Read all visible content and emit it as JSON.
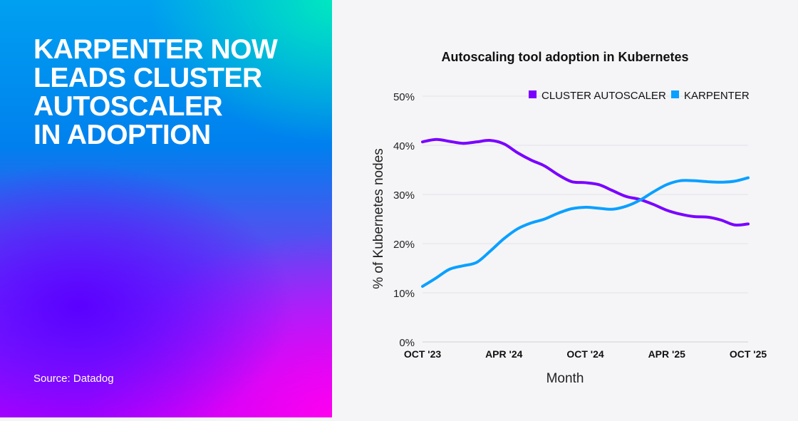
{
  "headline": [
    "KARPENTER NOW",
    "LEADS CLUSTER",
    "AUTOSCALER",
    "IN ADOPTION"
  ],
  "source": "Source: Datadog",
  "chart_data": {
    "type": "line",
    "title": "Autoscaling tool adoption in Kubernetes",
    "xlabel": "Month",
    "ylabel": "% of Kubernetes nodes",
    "ylim": [
      0,
      50
    ],
    "yticks": [
      "0%",
      "10%",
      "20%",
      "30%",
      "40%",
      "50%"
    ],
    "ytick_values": [
      0,
      10,
      20,
      30,
      40,
      50
    ],
    "xticks": [
      "OCT '23",
      "APR '24",
      "OCT '24",
      "APR '25",
      "OCT '25"
    ],
    "xtick_index": [
      0,
      6,
      12,
      18,
      24
    ],
    "x": [
      "2023-10",
      "2023-11",
      "2023-12",
      "2024-01",
      "2024-02",
      "2024-03",
      "2024-04",
      "2024-05",
      "2024-06",
      "2024-07",
      "2024-08",
      "2024-09",
      "2024-10",
      "2024-11",
      "2024-12",
      "2025-01",
      "2025-02",
      "2025-03",
      "2025-04",
      "2025-05",
      "2025-06",
      "2025-07",
      "2025-08",
      "2025-09",
      "2025-10"
    ],
    "grid": true,
    "legend_placement": "top-right",
    "series": [
      {
        "name": "CLUSTER AUTOSCALER",
        "color": "#7a00ff",
        "values": [
          40.7,
          41.2,
          40.8,
          40.4,
          40.7,
          41.0,
          40.3,
          38.5,
          37.0,
          35.8,
          34.0,
          32.6,
          32.4,
          32.0,
          30.8,
          29.6,
          29.0,
          28.0,
          26.8,
          26.0,
          25.5,
          25.4,
          24.8,
          23.8,
          24.0
        ]
      },
      {
        "name": "KARPENTER",
        "color": "#0aa0ff",
        "values": [
          11.3,
          13.0,
          14.8,
          15.5,
          16.2,
          18.5,
          21.0,
          23.0,
          24.2,
          25.0,
          26.2,
          27.1,
          27.4,
          27.2,
          27.0,
          27.6,
          28.8,
          30.5,
          32.0,
          32.8,
          32.8,
          32.6,
          32.5,
          32.7,
          33.4
        ]
      }
    ]
  }
}
